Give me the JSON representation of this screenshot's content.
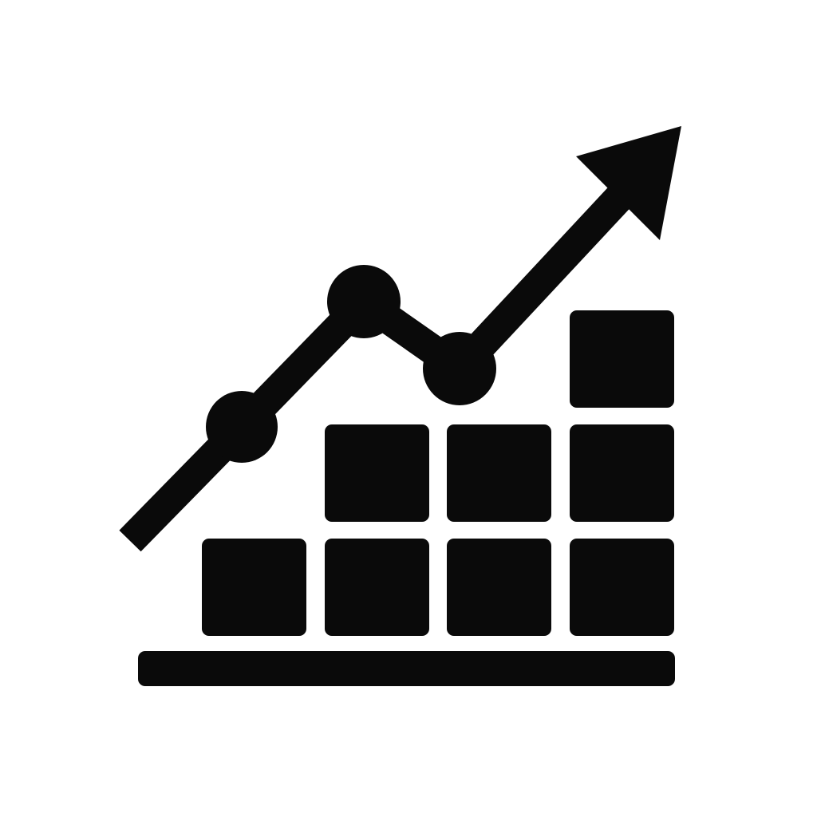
{
  "icon": {
    "name": "growth-chart-icon",
    "color": "#0a0a0a",
    "background": "#ffffff"
  },
  "blocks": {
    "column_heights": [
      1,
      2,
      2,
      3
    ]
  },
  "trend": {
    "nodes": 3,
    "direction": "up"
  }
}
